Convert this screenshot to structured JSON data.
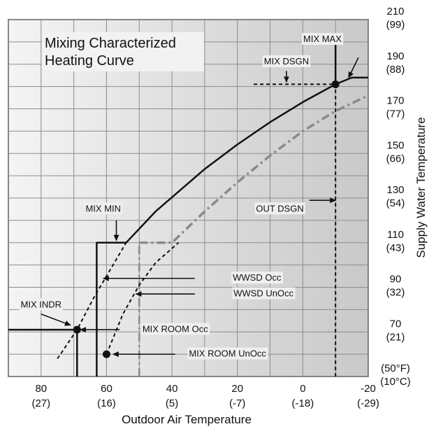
{
  "chart_data": {
    "type": "line",
    "title": [
      "Mixing Characterized",
      "Heating Curve"
    ],
    "xlabel": "Outdoor Air Temperature",
    "ylabel": "Supply Water Temperature",
    "xlim": [
      90,
      -20
    ],
    "ylim": [
      50,
      210
    ],
    "x_ticks": [
      {
        "v": 80,
        "label": "80",
        "sub": "(27)"
      },
      {
        "v": 60,
        "label": "60",
        "sub": "(16)"
      },
      {
        "v": 40,
        "label": "40",
        "sub": "(5)"
      },
      {
        "v": 20,
        "label": "20",
        "sub": "(-7)"
      },
      {
        "v": 0,
        "label": "0",
        "sub": "(-18)"
      },
      {
        "v": -20,
        "label": "-20",
        "sub": "(-29)"
      }
    ],
    "y_ticks": [
      {
        "v": 210,
        "label": "210",
        "sub": "(99)"
      },
      {
        "v": 190,
        "label": "190",
        "sub": "(88)"
      },
      {
        "v": 170,
        "label": "170",
        "sub": "(77)"
      },
      {
        "v": 150,
        "label": "150",
        "sub": "(66)"
      },
      {
        "v": 130,
        "label": "130",
        "sub": "(54)"
      },
      {
        "v": 110,
        "label": "110",
        "sub": "(43)"
      },
      {
        "v": 90,
        "label": "90",
        "sub": "(32)"
      },
      {
        "v": 70,
        "label": "70",
        "sub": "(21)"
      },
      {
        "v": 50,
        "label": "(50°F)",
        "sub": "(10°C)"
      }
    ],
    "series": [
      {
        "style": "solid",
        "color": "#111111",
        "points": [
          [
            54,
            110
          ],
          [
            45,
            124
          ],
          [
            30,
            143
          ],
          [
            20,
            154
          ],
          [
            10,
            164
          ],
          [
            0,
            173
          ],
          [
            -10,
            181
          ],
          [
            -15,
            184
          ],
          [
            -20,
            184
          ]
        ]
      },
      {
        "style": "dashdot",
        "color": "#8a8a8a",
        "points": [
          [
            50,
            110
          ],
          [
            40,
            110
          ],
          [
            30,
            124
          ],
          [
            20,
            137
          ],
          [
            10,
            149
          ],
          [
            0,
            160
          ],
          [
            -10,
            169
          ],
          [
            -20,
            176
          ]
        ]
      },
      {
        "style": "dashed",
        "color": "#111111",
        "points": [
          [
            75,
            58
          ],
          [
            69,
            71
          ],
          [
            64,
            85
          ],
          [
            58,
            100
          ],
          [
            54,
            110
          ]
        ]
      },
      {
        "style": "dashed",
        "color": "#111111",
        "points": [
          [
            60,
            60
          ],
          [
            55,
            78
          ],
          [
            50,
            91
          ],
          [
            45,
            101
          ],
          [
            38,
            110
          ]
        ]
      }
    ],
    "guides": [
      {
        "style": "solid",
        "color": "#111111",
        "points": [
          [
            90,
            71
          ],
          [
            69,
            71
          ],
          [
            69,
            50
          ]
        ]
      },
      {
        "style": "solid",
        "color": "#111111",
        "points": [
          [
            63,
            50
          ],
          [
            63,
            110
          ],
          [
            54,
            110
          ]
        ]
      },
      {
        "style": "dashdot",
        "color": "#8a8a8a",
        "points": [
          [
            50,
            50
          ],
          [
            50,
            110
          ]
        ]
      },
      {
        "style": "dashed",
        "color": "#111111",
        "points": [
          [
            -10,
            50
          ],
          [
            -10,
            181
          ]
        ]
      },
      {
        "style": "dashed",
        "color": "#111111",
        "points": [
          [
            15,
            181
          ],
          [
            -10,
            181
          ]
        ]
      },
      {
        "style": "solid",
        "color": "#111111",
        "points": [
          [
            -10,
            181
          ],
          [
            -10,
            202
          ]
        ]
      }
    ],
    "points": [
      {
        "name": "mix-indr-point",
        "x": 69,
        "y": 71
      },
      {
        "name": "mix-room-unocc-point",
        "x": 60,
        "y": 60
      },
      {
        "name": "mix-dsgn-point",
        "x": -10,
        "y": 181
      }
    ],
    "annotations": [
      {
        "name": "mix-max-label",
        "text": "MIX MAX",
        "tx": -6,
        "ty": 201,
        "anchor": "middle",
        "arrow": [
          [
            -17,
            193
          ],
          [
            -14,
            184
          ]
        ]
      },
      {
        "name": "mix-dsgn-label",
        "text": "MIX DSGN",
        "tx": 5,
        "ty": 191,
        "anchor": "middle",
        "arrow": [
          [
            5,
            187
          ],
          [
            5,
            182
          ]
        ]
      },
      {
        "name": "out-dsgn-label",
        "text": "OUT DSGN",
        "tx": 7,
        "ty": 125,
        "anchor": "middle",
        "arrow": [
          [
            -2,
            129
          ],
          [
            -10,
            129
          ]
        ]
      },
      {
        "name": "mix-min-label",
        "text": "MIX MIN",
        "tx": 61,
        "ty": 125,
        "anchor": "middle",
        "arrow": [
          [
            57,
            120
          ],
          [
            57,
            111
          ]
        ]
      },
      {
        "name": "wwsd-occ-label",
        "text": "WWSD Occ",
        "tx": 14,
        "ty": 94,
        "anchor": "middle",
        "arrow": [
          [
            33,
            94
          ],
          [
            61,
            94
          ]
        ]
      },
      {
        "name": "wwsd-unocc-label",
        "text": "WWSD UnOcc",
        "tx": 12,
        "ty": 87,
        "anchor": "middle",
        "arrow": [
          [
            33,
            87
          ],
          [
            51,
            87
          ]
        ]
      },
      {
        "name": "mix-indr-label",
        "text": "MIX INDR",
        "tx": 80,
        "ty": 82,
        "anchor": "middle",
        "arrow": [
          [
            80,
            78
          ],
          [
            71,
            73
          ]
        ]
      },
      {
        "name": "mix-room-occ-label",
        "text": "MIX ROOM Occ",
        "tx": 39,
        "ty": 71,
        "anchor": "middle",
        "arrow": [
          [
            56,
            71
          ],
          [
            68,
            71
          ]
        ]
      },
      {
        "name": "mix-room-unocc-label",
        "text": "MIX ROOM UnOcc",
        "tx": 23,
        "ty": 60,
        "anchor": "middle",
        "arrow": [
          [
            39,
            60
          ],
          [
            58,
            60
          ]
        ]
      }
    ],
    "grid": true,
    "colors": {
      "plot_bg_light": "#f4f4f4",
      "plot_bg_dark": "#c9c9c9",
      "grid": "#8c8c8c",
      "ink": "#111111",
      "gray_line": "#8a8a8a"
    }
  }
}
